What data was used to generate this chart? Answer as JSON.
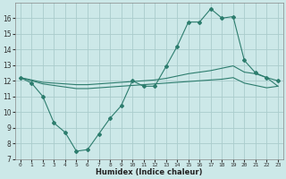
{
  "xlabel": "Humidex (Indice chaleur)",
  "x": [
    0,
    1,
    2,
    3,
    4,
    5,
    6,
    7,
    8,
    9,
    10,
    11,
    12,
    13,
    14,
    15,
    16,
    17,
    18,
    19,
    20,
    21,
    22,
    23
  ],
  "line_jagged": [
    12.2,
    11.85,
    11.0,
    9.3,
    8.7,
    7.5,
    7.6,
    8.6,
    9.6,
    10.4,
    12.0,
    11.65,
    11.65,
    12.9,
    14.2,
    15.75,
    15.75,
    16.6,
    16.0,
    16.1,
    13.3,
    12.5,
    12.2,
    12.0
  ],
  "line_upper": [
    12.2,
    12.05,
    11.9,
    11.85,
    11.8,
    11.75,
    11.75,
    11.8,
    11.85,
    11.9,
    11.95,
    12.0,
    12.05,
    12.15,
    12.3,
    12.45,
    12.55,
    12.65,
    12.8,
    12.95,
    12.55,
    12.45,
    12.2,
    11.65
  ],
  "line_lower": [
    12.2,
    12.0,
    11.8,
    11.7,
    11.6,
    11.5,
    11.5,
    11.55,
    11.6,
    11.65,
    11.7,
    11.75,
    11.8,
    11.85,
    11.9,
    11.95,
    12.0,
    12.05,
    12.1,
    12.2,
    11.85,
    11.7,
    11.55,
    11.65
  ],
  "color": "#2d7d6e",
  "bg_color": "#cce8e8",
  "grid_color": "#aacccc",
  "ylim": [
    7,
    17
  ],
  "yticks": [
    7,
    8,
    9,
    10,
    11,
    12,
    13,
    14,
    15,
    16
  ],
  "xlim": [
    -0.5,
    23.5
  ],
  "xticks": [
    0,
    1,
    2,
    3,
    4,
    5,
    6,
    7,
    8,
    9,
    10,
    11,
    12,
    13,
    14,
    15,
    16,
    17,
    18,
    19,
    20,
    21,
    22,
    23
  ]
}
